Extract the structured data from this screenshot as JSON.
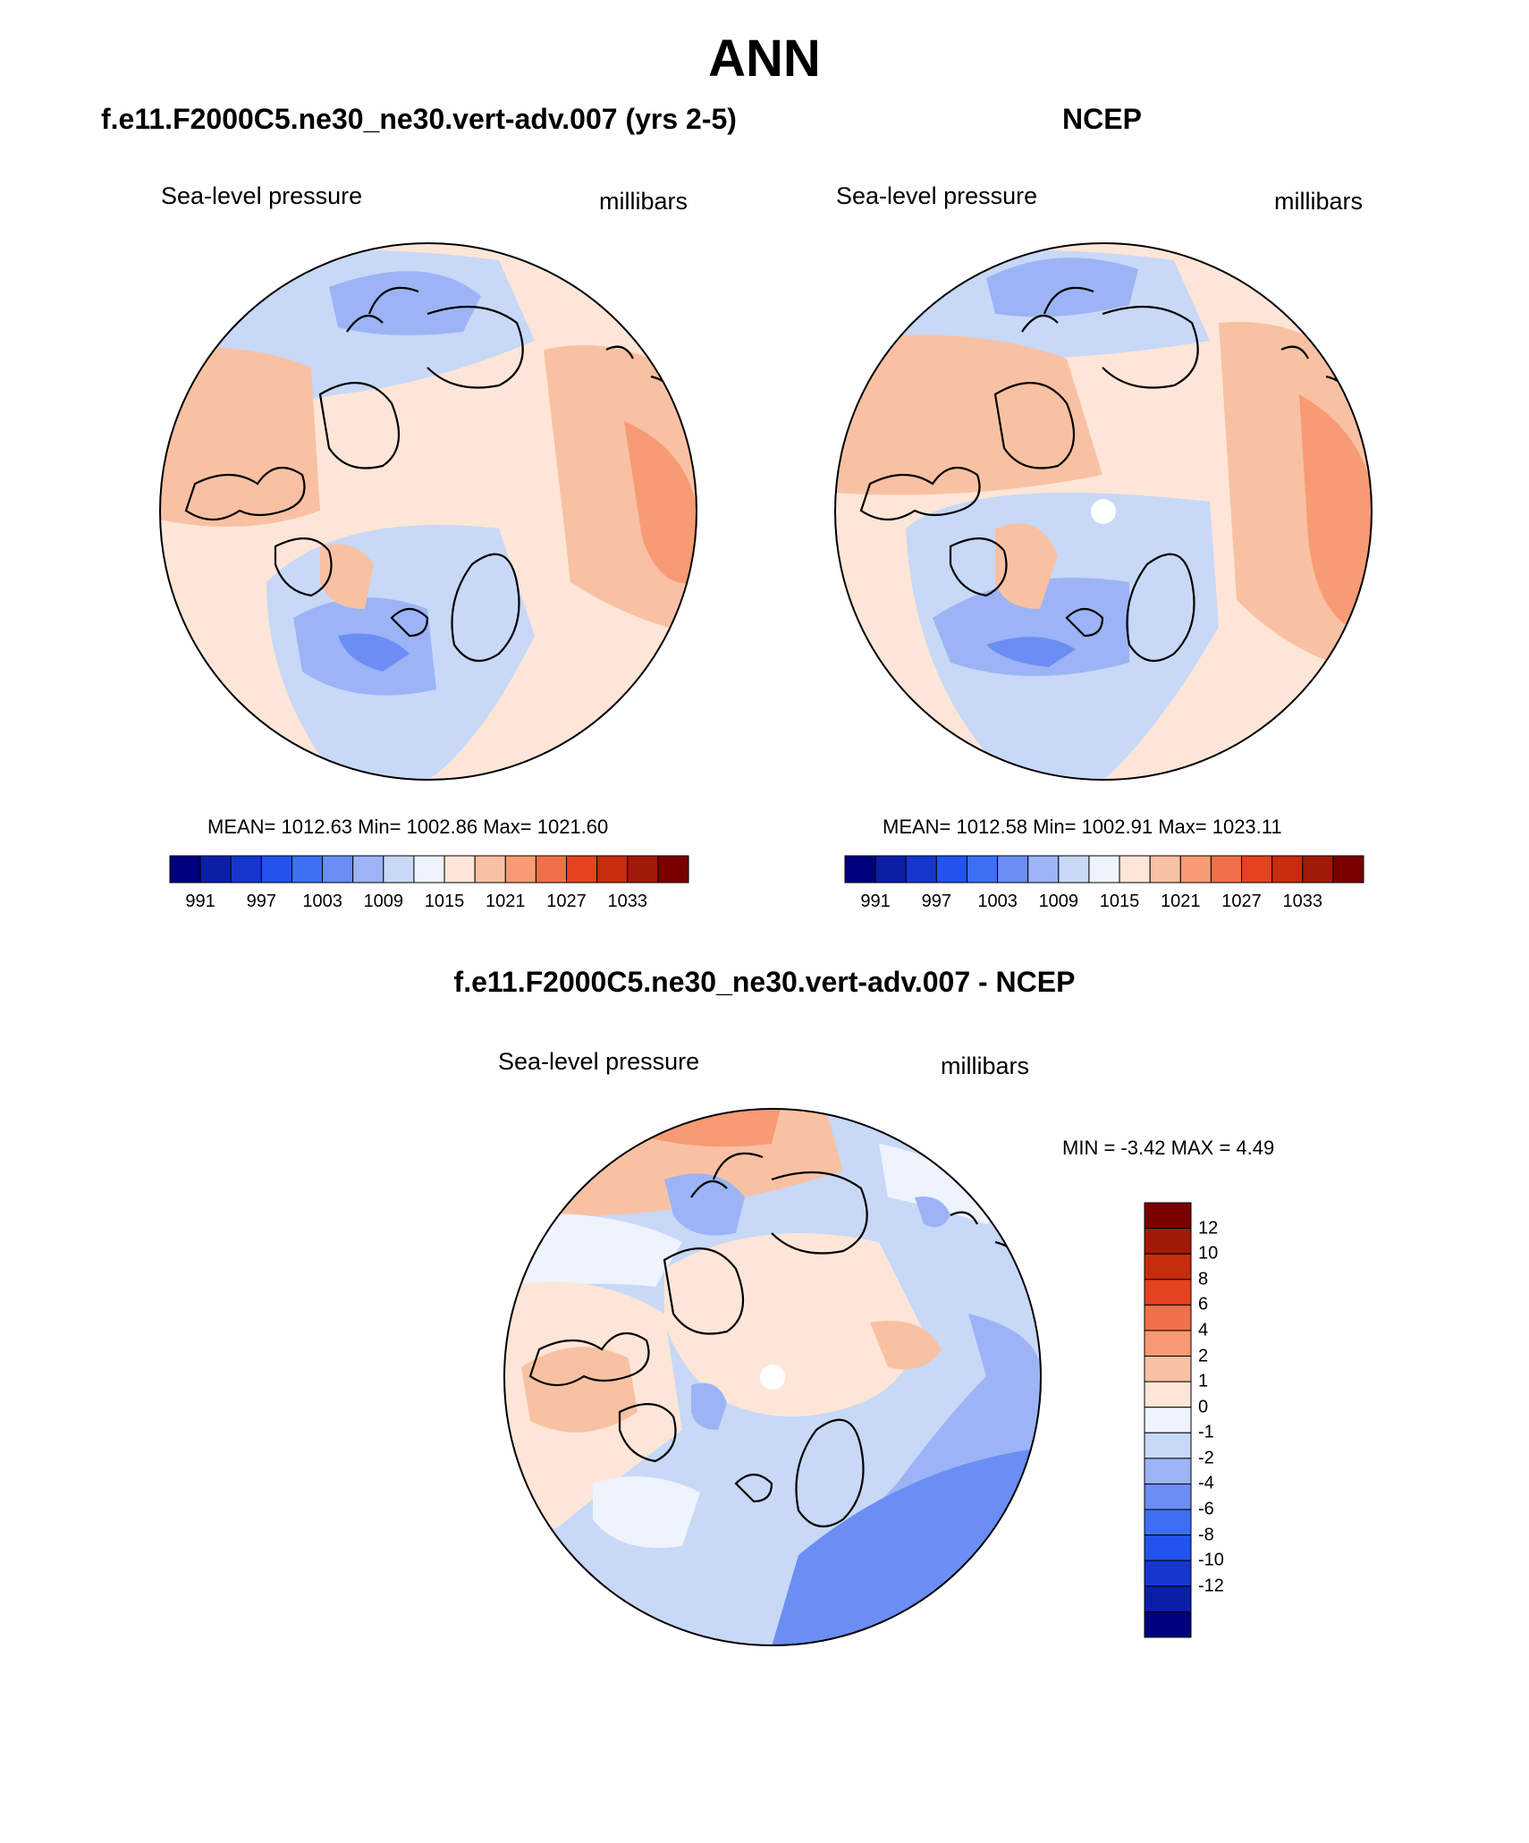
{
  "figure": {
    "title": "ANN"
  },
  "panels": {
    "model": {
      "title": "f.e11.F2000C5.ne30_ne30.vert-adv.007 (yrs 2-5)",
      "left_label": "Sea-level pressure",
      "right_label": "millibars",
      "stats": "MEAN= 1012.63  Min= 1002.86  Max= 1021.60"
    },
    "obs": {
      "title": "NCEP",
      "left_label": "Sea-level pressure",
      "right_label": "millibars",
      "stats": "MEAN= 1012.58  Min= 1002.91  Max= 1023.11"
    },
    "diff": {
      "title": "f.e11.F2000C5.ne30_ne30.vert-adv.007 - NCEP",
      "left_label": "Sea-level pressure",
      "right_label": "millibars",
      "stats": "MIN =  -3.42 MAX =   4.49"
    }
  },
  "colorbars": {
    "abs": {
      "colors": [
        "#00007f",
        "#0a1fa6",
        "#1537cc",
        "#2153ef",
        "#3d6ff5",
        "#6b8ef5",
        "#9cb4f6",
        "#c8d8f7",
        "#eef3fd",
        "#fde6d8",
        "#f9c1a3",
        "#f69b74",
        "#f0704a",
        "#e54220",
        "#c72c0c",
        "#a11a07",
        "#7a0000"
      ],
      "labels": [
        "991",
        "997",
        "1003",
        "1009",
        "1015",
        "1021",
        "1027",
        "1033"
      ]
    },
    "diff": {
      "colors": [
        "#00007f",
        "#0a1fa6",
        "#1537cc",
        "#2153ef",
        "#3d6ff5",
        "#6b8ef5",
        "#9cb4f6",
        "#c8d8f7",
        "#eef3fd",
        "#fde6d8",
        "#f9c1a3",
        "#f69b74",
        "#f0704a",
        "#e54220",
        "#c72c0c",
        "#a11a07",
        "#7a0000"
      ],
      "labels": [
        "12",
        "10",
        "8",
        "6",
        "4",
        "2",
        "1",
        "0",
        "-1",
        "-2",
        "-4",
        "-6",
        "-8",
        "-10",
        "-12"
      ]
    }
  },
  "map_colors": {
    "land_line": "#000000",
    "neg3": "#6b8ef5",
    "neg2": "#9cb4f6",
    "neg1": "#c8d8f7",
    "neg0": "#eef3fd",
    "pos0": "#fde6d8",
    "pos1": "#f9c1a3",
    "pos2": "#f69b74",
    "pos3": "#f0704a"
  }
}
